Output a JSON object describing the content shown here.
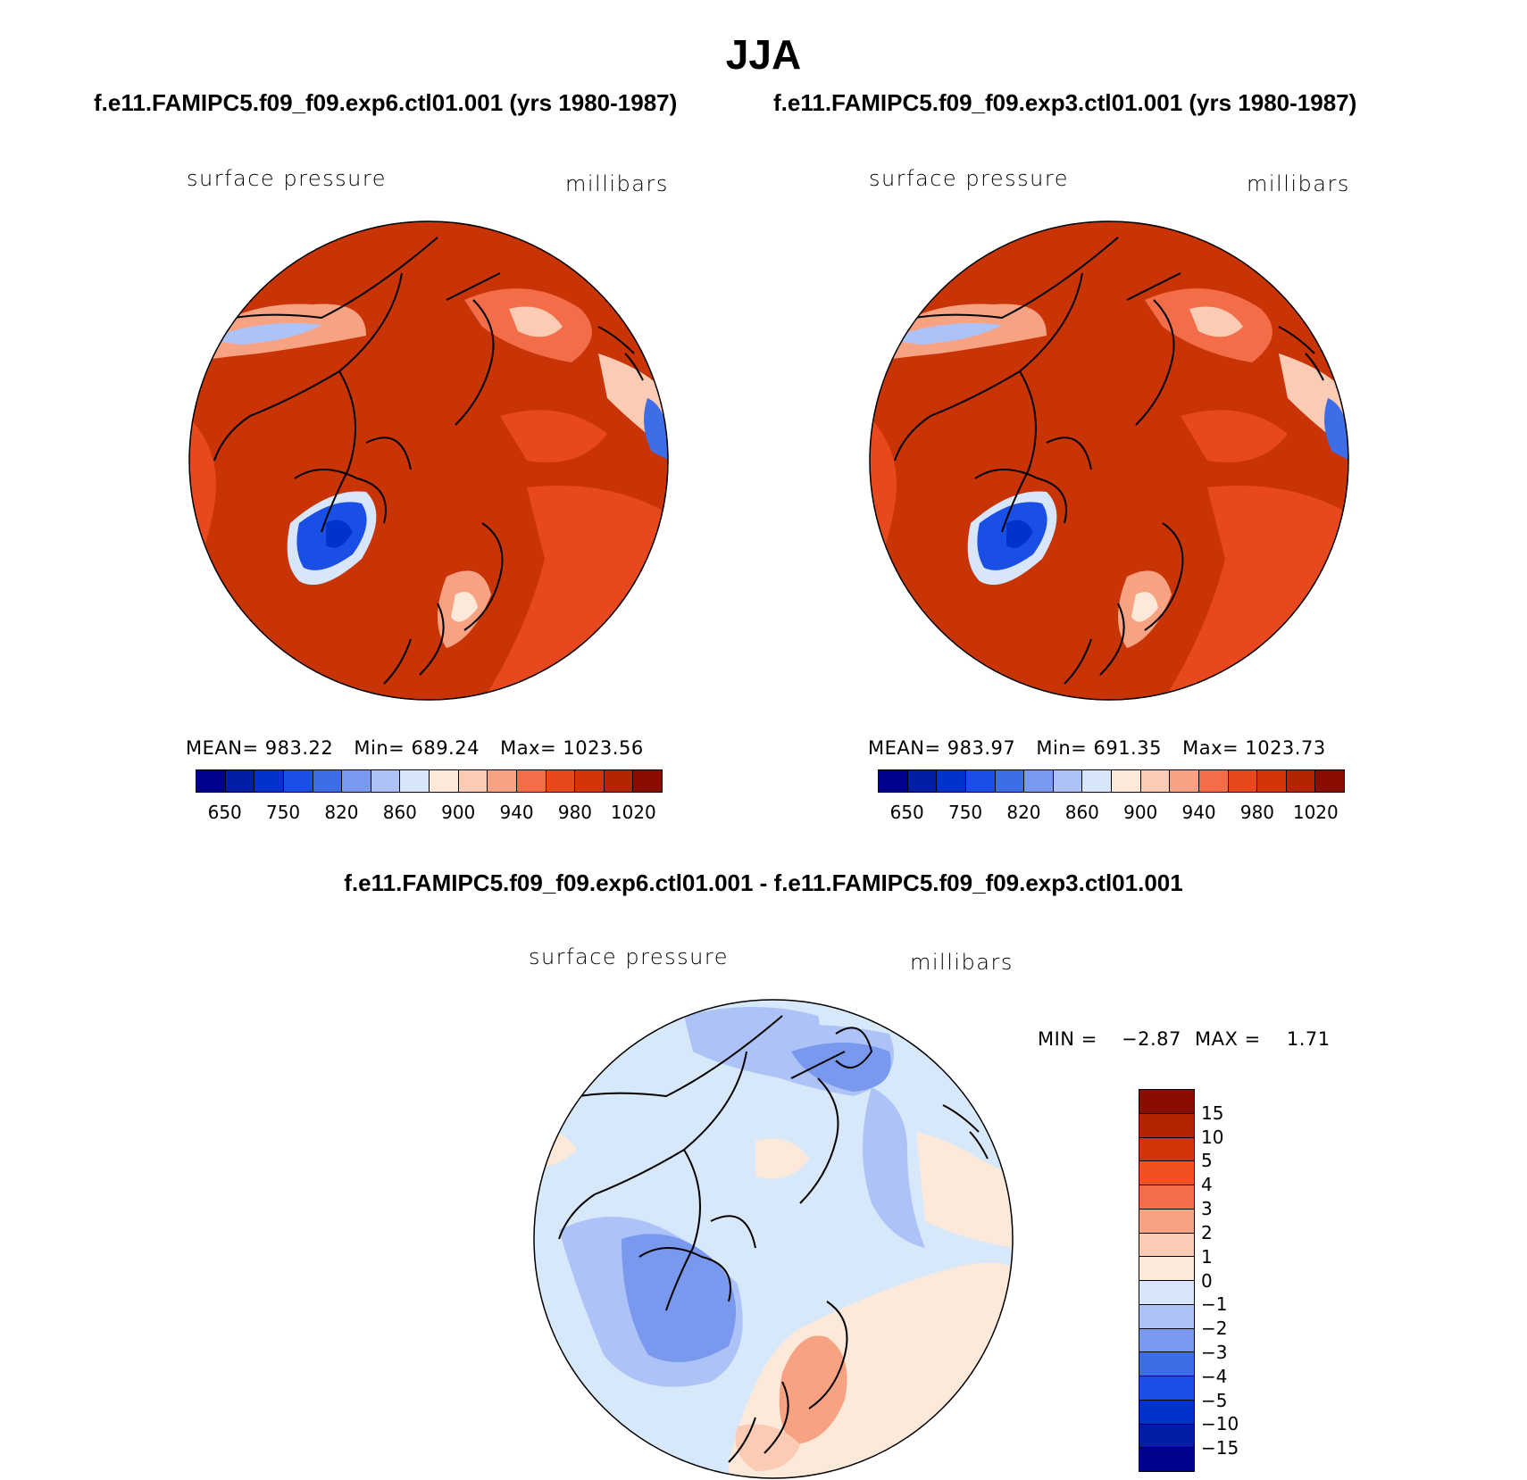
{
  "title": "JJA",
  "panels": [
    {
      "case": "f.e11.FAMIPC5.f09_f09.exp6.ctl01.001 (yrs 1980-1987)",
      "variable": "surface pressure",
      "units": "millibars",
      "mean_label": "MEAN=",
      "mean": "983.22",
      "min_label": "Min=",
      "min": "689.24",
      "max_label": "Max=",
      "max": "1023.56"
    },
    {
      "case": "f.e11.FAMIPC5.f09_f09.exp3.ctl01.001 (yrs 1980-1987)",
      "variable": "surface pressure",
      "units": "millibars",
      "mean_label": "MEAN=",
      "mean": "983.97",
      "min_label": "Min=",
      "min": "691.35",
      "max_label": "Max=",
      "max": "1023.73"
    }
  ],
  "abs_colorbar": {
    "colors": [
      "#00008f",
      "#001fa6",
      "#0033cc",
      "#1a4fe6",
      "#3d6ee8",
      "#7999ee",
      "#adc3f7",
      "#d7e6fb",
      "#fde9d9",
      "#fbcbb3",
      "#f7a383",
      "#f26d48",
      "#e8481e",
      "#d23509",
      "#b52400",
      "#8a0d00"
    ],
    "tick_labels": [
      "650",
      "750",
      "820",
      "860",
      "900",
      "940",
      "980",
      "1020"
    ]
  },
  "difference": {
    "title": "f.e11.FAMIPC5.f09_f09.exp6.ctl01.001 - f.e11.FAMIPC5.f09_f09.exp3.ctl01.001",
    "variable": "surface pressure",
    "units": "millibars",
    "min_label": "MIN =",
    "min": "−2.87",
    "max_label": "MAX =",
    "max": "1.71"
  },
  "diff_colorbar": {
    "colors": [
      "#8a0d00",
      "#b52400",
      "#d23509",
      "#f2501e",
      "#f26d48",
      "#f7a383",
      "#fbcbb3",
      "#fde9d9",
      "#d7e6fb",
      "#adc3f7",
      "#7999ee",
      "#3d6ee8",
      "#1a4fe6",
      "#0033cc",
      "#001fa6",
      "#00008f"
    ],
    "tick_labels": [
      "15",
      "10",
      "5",
      "4",
      "3",
      "2",
      "1",
      "0",
      "−1",
      "−2",
      "−3",
      "−4",
      "−5",
      "−10",
      "−15"
    ]
  },
  "colors": {
    "map_background_abs": "#c83406",
    "map_background_diff": "#d8e8fb"
  }
}
